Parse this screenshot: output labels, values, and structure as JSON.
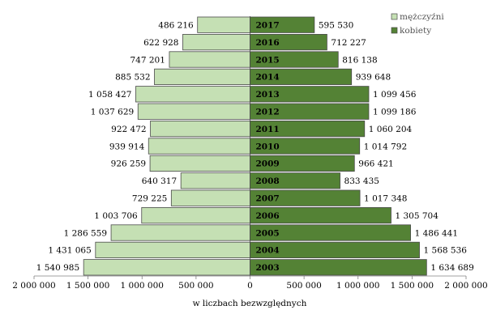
{
  "chart_data": {
    "type": "bar",
    "orientation": "horizontal",
    "layout": "population-pyramid",
    "categories": [
      "2017",
      "2016",
      "2015",
      "2014",
      "2013",
      "2012",
      "2011",
      "2010",
      "2009",
      "2008",
      "2007",
      "2006",
      "2005",
      "2004",
      "2003"
    ],
    "series": [
      {
        "name": "mężczyźni",
        "color": "#c5e0b4",
        "side": "left",
        "values": [
          486216,
          622928,
          747201,
          885532,
          1058427,
          1037629,
          922472,
          939914,
          926259,
          640317,
          729225,
          1003706,
          1286559,
          1431065,
          1540985
        ],
        "labels": [
          "486 216",
          "622 928",
          "747 201",
          "885 532",
          "1 058 427",
          "1 037 629",
          "922 472",
          "939 914",
          "926 259",
          "640 317",
          "729 225",
          "1 003 706",
          "1 286 559",
          "1 431 065",
          "1 540 985"
        ]
      },
      {
        "name": "kobiety",
        "color": "#548235",
        "side": "right",
        "values": [
          595530,
          712227,
          816138,
          939648,
          1099456,
          1099186,
          1060204,
          1014792,
          966421,
          833435,
          1017348,
          1305704,
          1486441,
          1568536,
          1634689
        ],
        "labels": [
          "595 530",
          "712 227",
          "816 138",
          "939 648",
          "1 099 456",
          "1 099 186",
          "1 060 204",
          "1 014 792",
          "966 421",
          "833 435",
          "1 017 348",
          "1 305 704",
          "1 486 441",
          "1 568 536",
          "1 634 689"
        ]
      }
    ],
    "xlim": [
      -2000000,
      2000000
    ],
    "xticks": [
      -2000000,
      -1500000,
      -1000000,
      -500000,
      0,
      500000,
      1000000,
      1500000,
      2000000
    ],
    "xtick_labels": [
      "2 000 000",
      "1 500 000",
      "1 000 000",
      "500 000",
      "0",
      "500 000",
      "1 000 000",
      "1 500 000",
      "2 000 000"
    ],
    "xlabel": "w liczbach bezwzględnych",
    "legend_position": "top-right",
    "grid": false
  }
}
